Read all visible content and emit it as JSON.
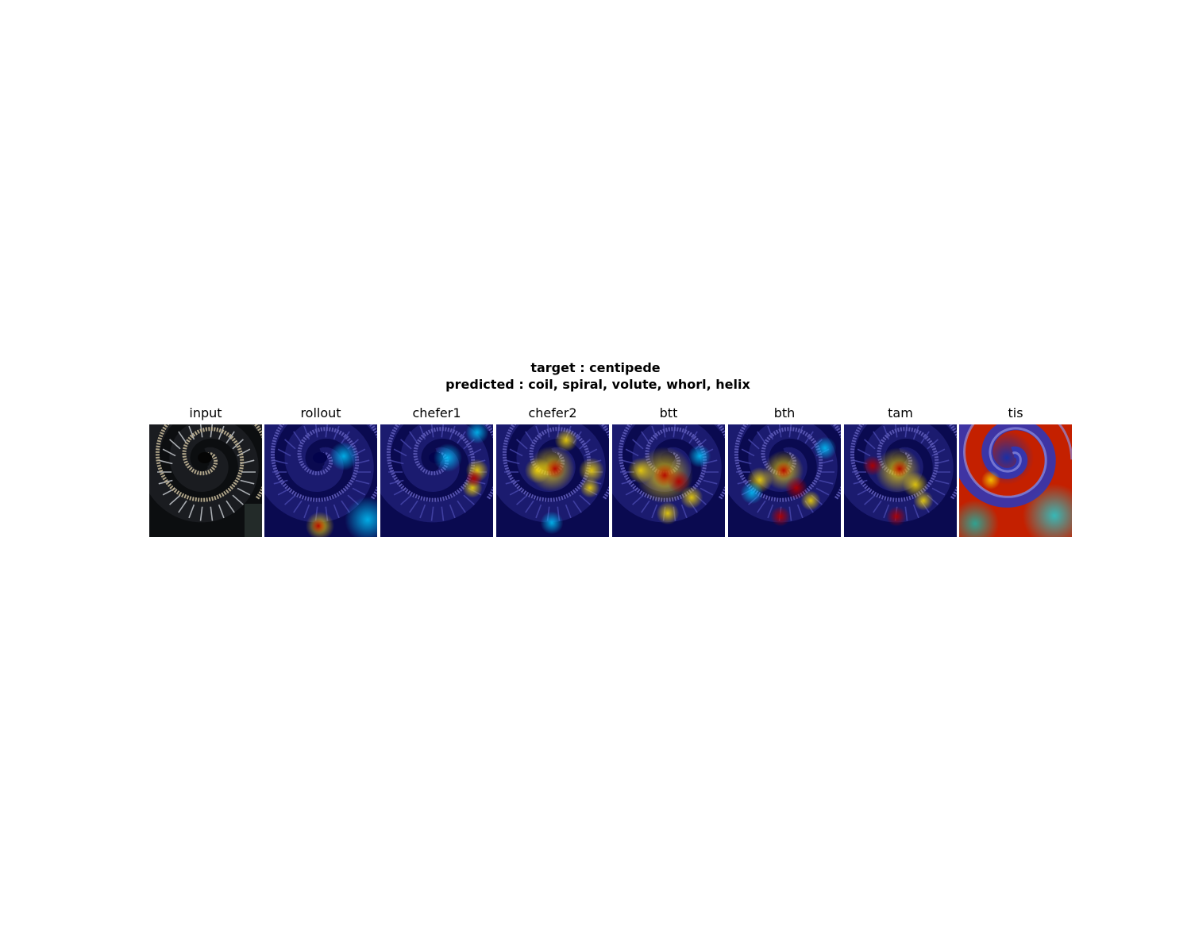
{
  "figure": {
    "title_line1": "target : centipede",
    "title_line2": "predicted : coil, spiral, volute, whorl, helix"
  },
  "panels": [
    {
      "label": "input",
      "kind": "photo"
    },
    {
      "label": "rollout",
      "kind": "heatmap"
    },
    {
      "label": "chefer1",
      "kind": "heatmap"
    },
    {
      "label": "chefer2",
      "kind": "heatmap"
    },
    {
      "label": "btt",
      "kind": "heatmap"
    },
    {
      "label": "bth",
      "kind": "heatmap"
    },
    {
      "label": "tam",
      "kind": "heatmap"
    },
    {
      "label": "tis",
      "kind": "heatmap"
    }
  ],
  "colors": {
    "cold": "#00008b",
    "mid": "#00c8ff",
    "warm": "#ffe000",
    "hot": "#b00000",
    "photo_bg": "#0c0e10",
    "rope": "#b8ad90"
  }
}
